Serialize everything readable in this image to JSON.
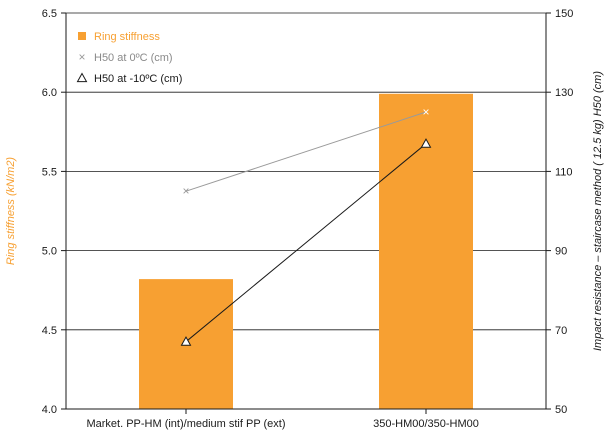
{
  "chart_data": {
    "type": "bar",
    "categories": [
      "Market. PP-HM (int)/medium stif PP (ext)",
      "350-HM00/350-HM00"
    ],
    "left_axis": {
      "label": "Ring stiffness (kN/m2)",
      "ylim": [
        4.0,
        6.5
      ],
      "ticks": [
        "4.0",
        "4.5",
        "5.0",
        "5.5",
        "6.0",
        "6.5"
      ],
      "tick_values": [
        4.0,
        4.5,
        5.0,
        5.5,
        6.0,
        6.5
      ]
    },
    "right_axis": {
      "label": "Impact resistance – staircase method ( 12.5 kg) H50 (cm)",
      "ylim": [
        50,
        150
      ],
      "ticks": [
        "50",
        "70",
        "90",
        "110",
        "130",
        "150"
      ],
      "tick_values": [
        50,
        70,
        90,
        110,
        130,
        150
      ]
    },
    "series": [
      {
        "name": "Ring stiffness",
        "kind": "bar",
        "axis": "left",
        "values": [
          4.82,
          5.99
        ],
        "color": "#f7a032",
        "marker": "square"
      },
      {
        "name": "H50 at 0ºC (cm)",
        "kind": "line",
        "axis": "right",
        "values": [
          105,
          125
        ],
        "color": "#9a9a9a",
        "marker": "x"
      },
      {
        "name": "H50 at -10ºC (cm)",
        "kind": "line",
        "axis": "right",
        "values": [
          67,
          117
        ],
        "color": "#1a1a1a",
        "marker": "triangle"
      }
    ],
    "legend_position": "top-left",
    "grid": "horizontal",
    "colors": {
      "axis_title": "#f7a032",
      "axis": "#1a1a1a",
      "grid": "#1a1a1a"
    }
  }
}
